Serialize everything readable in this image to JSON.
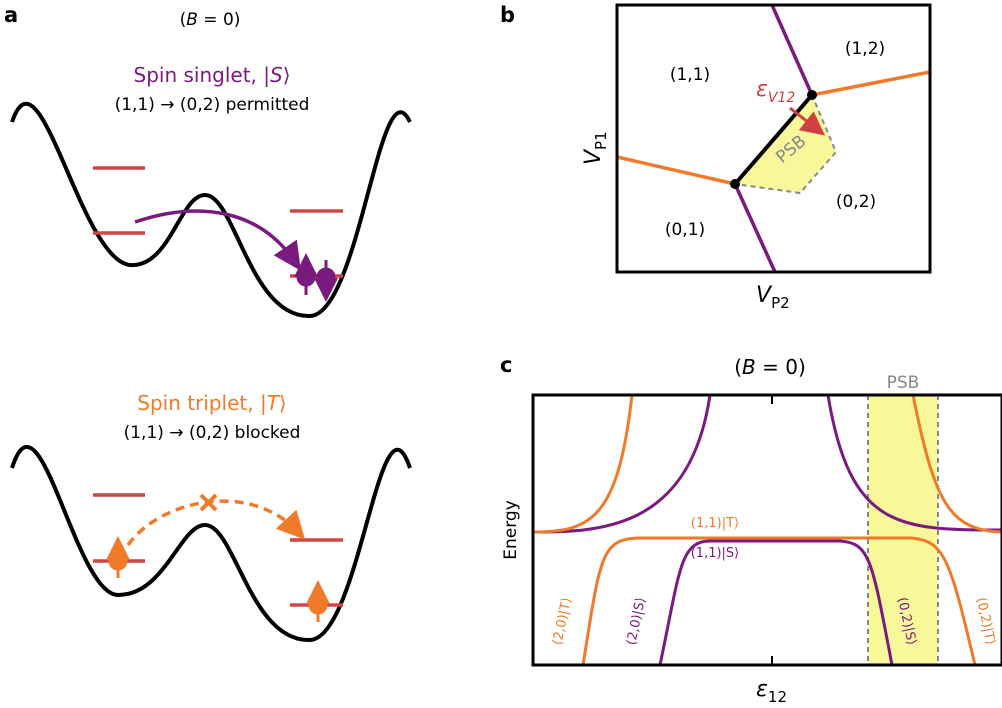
{
  "panel_a": {
    "label": "a",
    "condition": {
      "open": "(",
      "var": "B",
      "close": " = 0)"
    },
    "singlet": {
      "title": "Spin singlet, |",
      "state": "S",
      "ket": "⟩",
      "transition": "(1,1) → (0,2) permitted"
    },
    "triplet": {
      "title": "Spin triplet, |",
      "state": "T",
      "ket": "⟩",
      "transition": "(1,1) → (0,2) blocked"
    }
  },
  "panel_b": {
    "label": "b",
    "regions": [
      "(1,1)",
      "(1,2)",
      "(0,1)",
      "(0,2)"
    ],
    "psb": "PSB",
    "detuning": {
      "symbol": "ε",
      "sub": "V12"
    },
    "y_axis": {
      "symbol": "V",
      "sub": "P1"
    },
    "x_axis": {
      "symbol": "V",
      "sub": "P2"
    }
  },
  "panel_c": {
    "label": "c",
    "condition": {
      "open": "(",
      "var": "B",
      "close": " = 0)"
    },
    "psb": "PSB",
    "y_axis": "Energy",
    "x_axis": {
      "symbol": "ε",
      "sub": "12"
    },
    "curve_labels": [
      "(1,1)|T⟩",
      "(1,1)|S⟩",
      "(2,0)|T⟩",
      "(2,0)|S⟩",
      "(0,2)|S⟩",
      "(0,2)|T⟩"
    ]
  }
}
